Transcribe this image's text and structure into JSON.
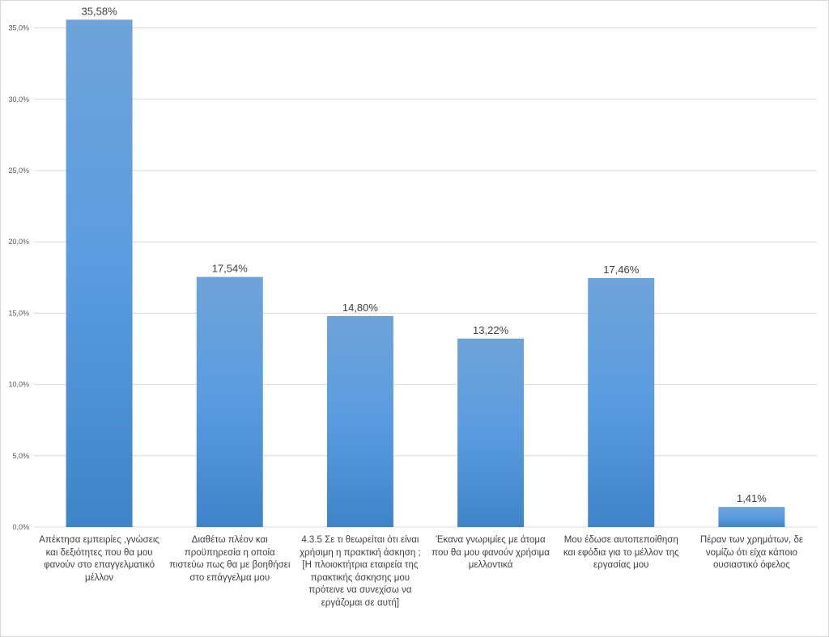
{
  "chart_data": {
    "type": "bar",
    "categories": [
      "Απέκτησα εμπειρίες ,γνώσεις και δεξιότητες που θα μου φανούν στο επαγγελματικό μέλλον",
      "Διαθέτω πλέον και προϋπηρεσία η οποία πιστεύω πως θα με βοηθήσει στο επάγγελμα μου",
      "4.3.5 Σε τι θεωρείται ότι είναι χρήσιμη η πρακτική άσκηση ; [Η πλοιοκτήτρια εταιρεία της πρακτικής άσκησης μου πρότεινε να συνεχίσω να εργάζομαι σε αυτή]",
      "Έκανα γνωριμίες με άτομα που θα μου φανούν χρήσιμα μελλοντικά",
      "Μου έδωσε αυτοπεποίθηση και εφόδια για το μέλλον της εργασίας μου",
      "Πέραν των χρημάτων, δε νομίζω ότι είχα κάποιο ουσιαστικό όφελος"
    ],
    "values": [
      35.58,
      17.54,
      14.8,
      13.22,
      17.46,
      1.41
    ],
    "data_labels": [
      "35,58%",
      "17,54%",
      "14,80%",
      "13,22%",
      "17,46%",
      "1,41%"
    ],
    "y_ticks": [
      0,
      5,
      10,
      15,
      20,
      25,
      30,
      35
    ],
    "y_tick_labels": [
      "0,0%",
      "5,0%",
      "10,0%",
      "15,0%",
      "20,0%",
      "25,0%",
      "30,0%",
      "35,0%"
    ],
    "ylim": [
      0,
      35.6
    ],
    "grid": true,
    "legend": "none",
    "colors": {
      "bar_top": "#6fa3d9",
      "bar_mid": "#5a9be0",
      "bar_bottom": "#3f84c8",
      "grid": "#d9d9d9"
    }
  }
}
